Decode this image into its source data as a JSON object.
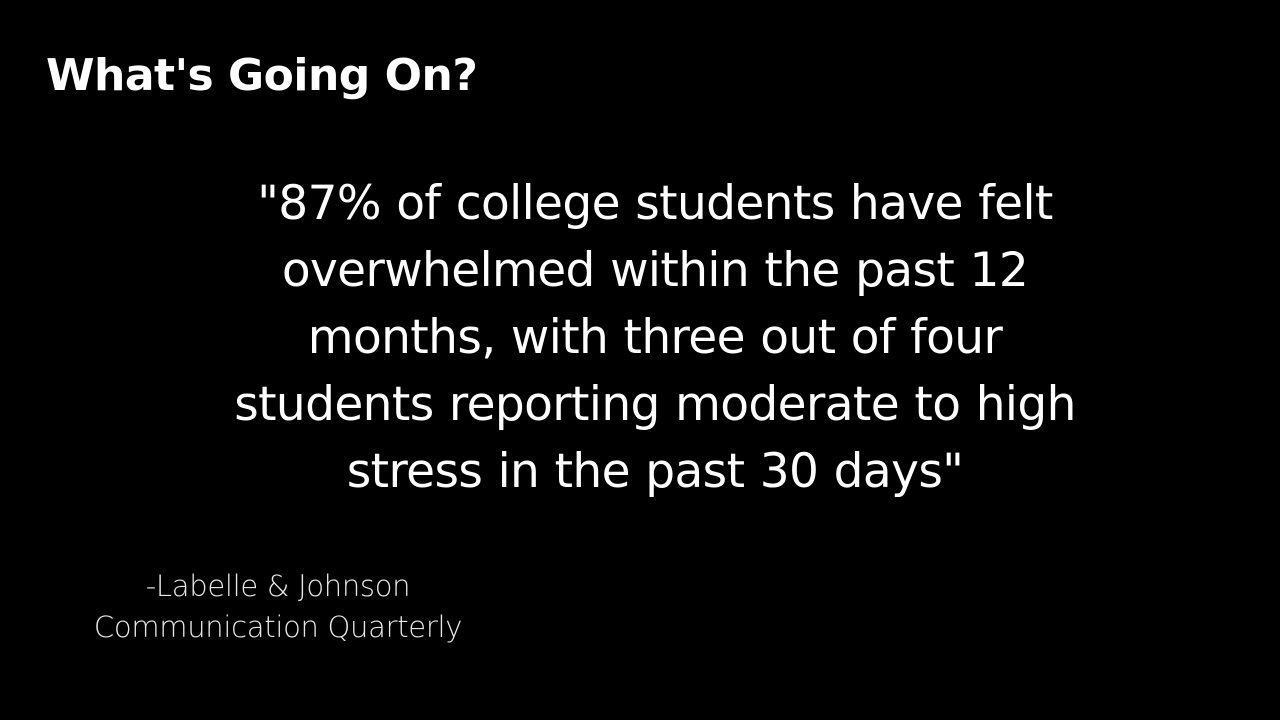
{
  "slide": {
    "title": "What's Going On?",
    "quote_lines": [
      "\"87% of college students have felt",
      "overwhelmed within the past 12",
      "months, with three out of four",
      "students reporting moderate to high",
      "stress in the past 30 days\""
    ],
    "citation_lines": [
      "-Labelle & Johnson",
      "Communication Quarterly"
    ],
    "colors": {
      "background": "#000000",
      "text": "#ffffff"
    }
  }
}
